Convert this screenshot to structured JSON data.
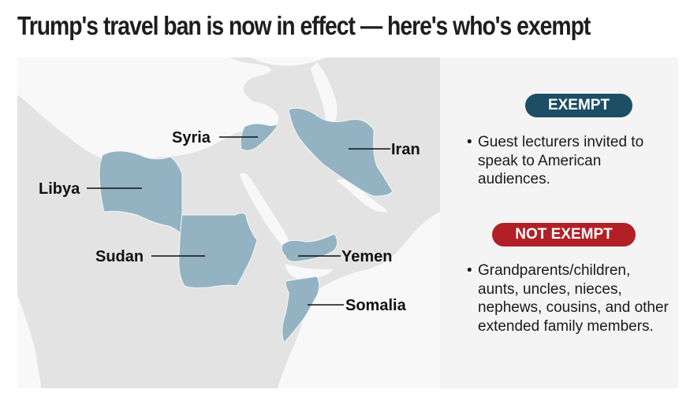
{
  "title": "Trump's travel ban is now in effect — here's who's exempt",
  "countries": {
    "syria": "Syria",
    "iran": "Iran",
    "libya": "Libya",
    "sudan": "Sudan",
    "yemen": "Yemen",
    "somalia": "Somalia"
  },
  "colors": {
    "banned_country": "#93b3c3",
    "land": "#e3e3e3",
    "sea": "#f8f8f8",
    "exempt": "#1c4e66",
    "not_exempt": "#b22027"
  },
  "exempt": {
    "label": "EXEMPT",
    "items": [
      "Guest lecturers invited to speak to American audiences."
    ]
  },
  "not_exempt": {
    "label": "NOT EXEMPT",
    "items": [
      "Grandparents/children, aunts, uncles, nieces, nephews, cousins, and other extended family members."
    ]
  }
}
